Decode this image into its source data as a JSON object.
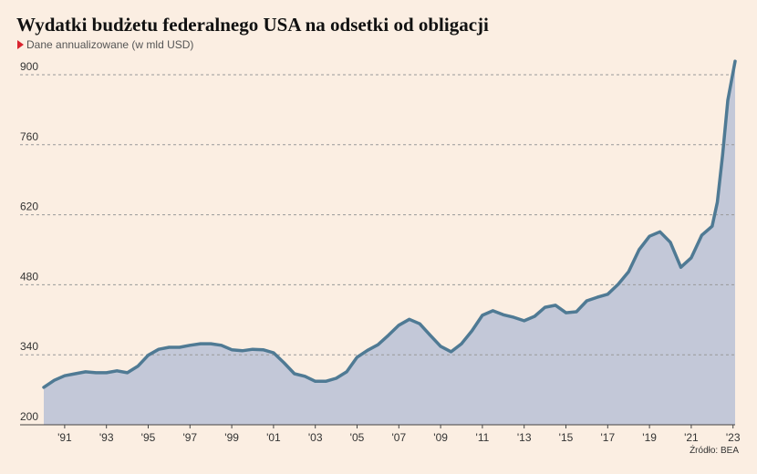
{
  "chart_data": {
    "type": "area",
    "title": "Wydatki budżetu federalnego USA na odsetki od obligacji",
    "subtitle": "Dane annualizowane (w mld USD)",
    "source": "Źródło: BEA",
    "color": "#4f7a94",
    "fill_color": "#c3c8d8",
    "grid": true,
    "xlim": [
      1990,
      2023.1
    ],
    "ylim": [
      200,
      900
    ],
    "yticks": [
      200,
      340,
      480,
      620,
      760,
      900
    ],
    "xticks": [
      {
        "value": 1991,
        "label": "'91"
      },
      {
        "value": 1993,
        "label": "'93"
      },
      {
        "value": 1995,
        "label": "'95"
      },
      {
        "value": 1997,
        "label": "'97"
      },
      {
        "value": 1999,
        "label": "'99"
      },
      {
        "value": 2001,
        "label": "'01"
      },
      {
        "value": 2003,
        "label": "'03"
      },
      {
        "value": 2005,
        "label": "'05"
      },
      {
        "value": 2007,
        "label": "'07"
      },
      {
        "value": 2009,
        "label": "'09"
      },
      {
        "value": 2011,
        "label": "'11"
      },
      {
        "value": 2013,
        "label": "'13"
      },
      {
        "value": 2015,
        "label": "'15"
      },
      {
        "value": 2017,
        "label": "'17"
      },
      {
        "value": 2019,
        "label": "'19"
      },
      {
        "value": 2021,
        "label": "'21"
      },
      {
        "value": 2023,
        "label": "'23"
      }
    ],
    "x": [
      1990,
      1990.5,
      1991,
      1991.5,
      1992,
      1992.5,
      1993,
      1993.5,
      1994,
      1994.5,
      1995,
      1995.5,
      1996,
      1996.5,
      1997,
      1997.5,
      1998,
      1998.5,
      1999,
      1999.5,
      2000,
      2000.5,
      2001,
      2001.5,
      2002,
      2002.5,
      2003,
      2003.5,
      2004,
      2004.5,
      2005,
      2005.5,
      2006,
      2006.5,
      2007,
      2007.5,
      2008,
      2008.5,
      2009,
      2009.5,
      2010,
      2010.5,
      2011,
      2011.5,
      2012,
      2012.5,
      2013,
      2013.5,
      2014,
      2014.5,
      2015,
      2015.5,
      2016,
      2016.5,
      2017,
      2017.5,
      2018,
      2018.5,
      2019,
      2019.5,
      2020,
      2020.5,
      2021,
      2021.5,
      2022,
      2022.25,
      2022.5,
      2022.75,
      2023.1
    ],
    "values": [
      275,
      289,
      298,
      302,
      306,
      304,
      304,
      308,
      304,
      317,
      339,
      351,
      355,
      355,
      359,
      362,
      362,
      359,
      350,
      348,
      351,
      350,
      344,
      324,
      302,
      297,
      287,
      287,
      293,
      306,
      335,
      349,
      360,
      379,
      399,
      411,
      402,
      379,
      357,
      346,
      362,
      388,
      419,
      428,
      420,
      415,
      408,
      417,
      435,
      439,
      424,
      426,
      448,
      455,
      461,
      481,
      506,
      550,
      577,
      586,
      565,
      515,
      534,
      579,
      597,
      645,
      740,
      849,
      927
    ]
  }
}
